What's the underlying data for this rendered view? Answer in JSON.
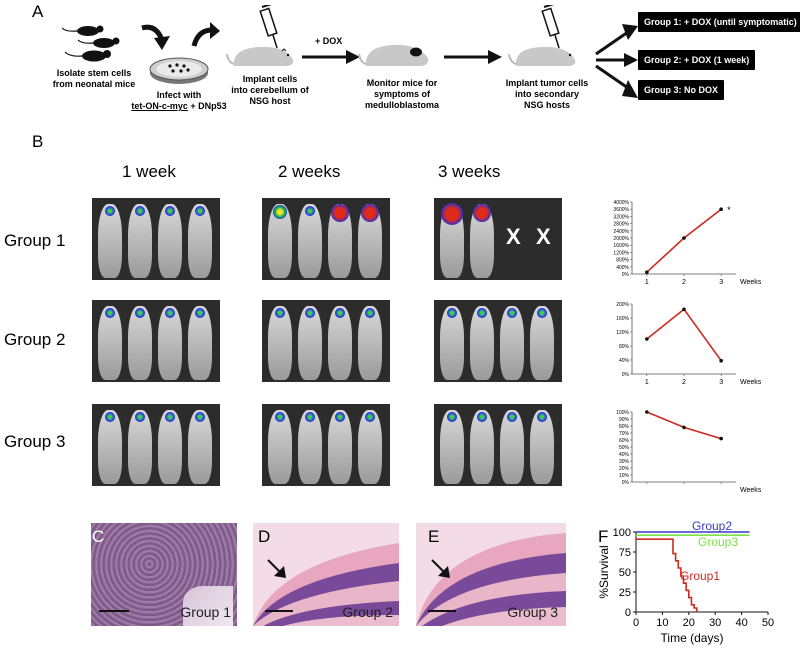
{
  "panel_A": {
    "letter": "A",
    "step1": "Isolate stem cells\nfrom neonatal mice",
    "step2_line1": "Infect with",
    "step2_gene": "tet-ON-c-myc",
    "step2_rest": " + DNp53",
    "step3": "Implant cells\ninto cerebellum of\nNSG host",
    "dox_label": "+ DOX",
    "step4": "Monitor mice for\nsymptoms of\nmedulloblastoma",
    "step5": "Implant tumor cells\ninto secondary\nNSG hosts",
    "groups": [
      "Group 1: + DOX (until symptomatic)",
      "Group 2: + DOX (1 week)",
      "Group 3: No DOX"
    ]
  },
  "panel_B": {
    "letter": "B",
    "weeks": [
      "1 week",
      "2 weeks",
      "3 weeks"
    ],
    "rows": [
      "Group 1",
      "Group 2",
      "Group 3"
    ],
    "dead_marks": [
      "X",
      "X"
    ]
  },
  "chart_data": [
    {
      "type": "line",
      "name": "Group 1 signal",
      "x": [
        1,
        2,
        3
      ],
      "y": [
        100,
        2000,
        3600
      ],
      "ylim": [
        0,
        4000
      ],
      "yticks": [
        "0%",
        "400%",
        "800%",
        "1200%",
        "1600%",
        "2000%",
        "2400%",
        "2800%",
        "3200%",
        "3600%",
        "4000%"
      ],
      "xticks": [
        "1",
        "2",
        "3"
      ],
      "xlabel": "Weeks",
      "annotation": "*",
      "color": "#cc2a1e"
    },
    {
      "type": "line",
      "name": "Group 2 signal",
      "x": [
        1,
        2,
        3
      ],
      "y": [
        100,
        185,
        38
      ],
      "ylim": [
        0,
        200
      ],
      "yticks": [
        "0%",
        "40%",
        "80%",
        "120%",
        "160%",
        "200%"
      ],
      "xticks": [
        "1",
        "2",
        "3"
      ],
      "xlabel": "Weeks",
      "color": "#cc2a1e"
    },
    {
      "type": "line",
      "name": "Group 3 signal",
      "x": [
        1,
        2,
        3
      ],
      "y": [
        100,
        78,
        62
      ],
      "ylim": [
        0,
        100
      ],
      "yticks": [
        "0%",
        "10%",
        "20%",
        "30%",
        "40%",
        "50%",
        "60%",
        "70%",
        "80%",
        "90%",
        "100%"
      ],
      "xticks": [],
      "xlabel": "Weeks",
      "color": "#cc2a1e"
    },
    {
      "type": "line",
      "name": "Survival",
      "xlabel": "Time (days)",
      "ylabel": "%Survival",
      "xlim": [
        0,
        50
      ],
      "ylim": [
        0,
        100
      ],
      "xticks": [
        "0",
        "10",
        "20",
        "30",
        "40",
        "50"
      ],
      "yticks": [
        "0",
        "25",
        "50",
        "75",
        "100"
      ],
      "series": [
        {
          "name": "Group2",
          "color": "#3a3acb",
          "x": [
            0,
            43
          ],
          "y": [
            100,
            100
          ]
        },
        {
          "name": "Group3",
          "color": "#7fe04a",
          "x": [
            0,
            43
          ],
          "y": [
            96,
            96
          ]
        },
        {
          "name": "Group1",
          "color": "#d02a20",
          "x": [
            0,
            14,
            14,
            15,
            15,
            16,
            16,
            17,
            17,
            18,
            18,
            19,
            19,
            20,
            20,
            21,
            21,
            22,
            22,
            23,
            23
          ],
          "y": [
            91,
            91,
            73,
            73,
            64,
            64,
            55,
            55,
            45,
            45,
            36,
            36,
            27,
            27,
            18,
            18,
            9,
            9,
            5,
            5,
            0
          ]
        }
      ]
    }
  ],
  "histology": {
    "C": {
      "letter": "C",
      "label": "Group 1"
    },
    "D": {
      "letter": "D",
      "label": "Group 2"
    },
    "E": {
      "letter": "E",
      "label": "Group 3"
    }
  },
  "panel_F": {
    "letter": "F"
  }
}
